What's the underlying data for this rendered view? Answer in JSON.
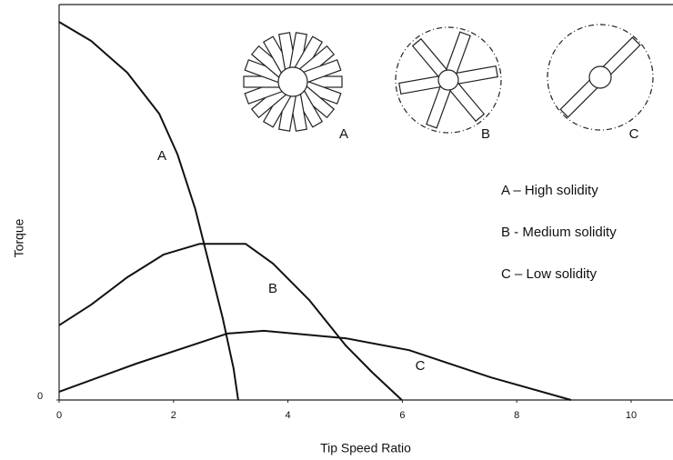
{
  "chart_data": {
    "type": "line",
    "xlabel": "Tip Speed Ratio",
    "ylabel": "Torque",
    "xlim": [
      0,
      10.7
    ],
    "xticks": [
      0,
      2,
      4,
      6,
      8,
      10
    ],
    "ylim": [
      0,
      10
    ],
    "yticks": [
      0
    ],
    "series": [
      {
        "name": "A",
        "color": "#111111",
        "x": [
          0,
          0.56,
          1.19,
          1.75,
          2.07,
          2.38,
          2.62,
          2.86,
          3.05,
          3.13
        ],
        "values": [
          9.56,
          9.08,
          8.28,
          7.24,
          6.21,
          4.83,
          3.45,
          2.07,
          0.8,
          0
        ]
      },
      {
        "name": "B",
        "color": "#111111",
        "x": [
          0,
          0.56,
          1.19,
          1.83,
          2.46,
          3.26,
          3.74,
          4.37,
          5.01,
          5.48,
          5.99
        ],
        "values": [
          1.89,
          2.41,
          3.1,
          3.68,
          3.95,
          3.95,
          3.45,
          2.53,
          1.38,
          0.69,
          0
        ]
      },
      {
        "name": "C",
        "color": "#111111",
        "x": [
          0,
          1.35,
          2.94,
          3.58,
          5.01,
          6.12,
          7.55,
          8.95
        ],
        "values": [
          0.21,
          0.92,
          1.68,
          1.75,
          1.56,
          1.26,
          0.57,
          0
        ]
      }
    ],
    "annotations": [
      "A – High solidity",
      "B - Medium solidity",
      "C – Low solidity"
    ]
  }
}
